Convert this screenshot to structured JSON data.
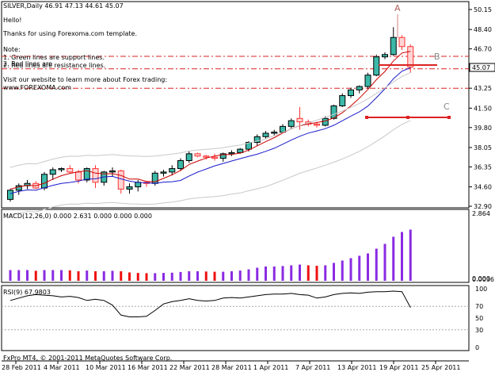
{
  "header": {
    "symbol_line": "SILVER,Daily  46.91 47.13 44.61 45.07",
    "hello": "Hello!",
    "thanks": "Thanks for using Forexoma.com template.",
    "note": "Note:",
    "note1": "1. Green lines are support lines.",
    "note2": "2. Red lines are resistance lines.",
    "note2_overlap": "2. Red lines are",
    "visit": "Visit our website to learn more about Forex trading:",
    "url": "www.FOREXOMA.com"
  },
  "price_axis": {
    "ticks": [
      "50.15",
      "48.40",
      "46.70",
      "44.95",
      "43.25",
      "41.50",
      "39.80",
      "38.05",
      "36.35",
      "34.60",
      "32.90"
    ],
    "current_price": "45.07",
    "current_color": "#000000"
  },
  "time_axis": {
    "labels": [
      "28 Feb 2011",
      "4 Mar 2011",
      "10 Mar 2011",
      "16 Mar 2011",
      "22 Mar 2011",
      "28 Mar 2011",
      "1 Apr 2011",
      "7 Apr 2011",
      "13 Apr 2011",
      "19 Apr 2011",
      "25 Apr 2011"
    ]
  },
  "markers": {
    "a": "A",
    "b": "B",
    "c": "C"
  },
  "macd": {
    "title": "MACD(12,26,0) 0.000 2.631 0.000 0.000 0.000",
    "axis_top": "2.864",
    "axis_bottom": "0.000",
    "axis_bottom_overlap": "0.0036"
  },
  "rsi": {
    "title": "RSI(9) 67.9803",
    "ticks": [
      "100",
      "70",
      "50",
      "30",
      "0"
    ]
  },
  "footer": {
    "copyright": "FxPro MT4, © 2001-2011 MetaQuotes Software Corp."
  },
  "colors": {
    "bull_fill": "#3cb8a8",
    "bear_fill": "#ffffff",
    "bear_outline": "#ff3333",
    "bull_outline": "#000000",
    "ma_fast": "#cc0000",
    "ma_slow": "#1a1acc",
    "envelope": "#c8c8c8",
    "resistance": "#dd2222",
    "macd_up": "#8a2be2",
    "macd_down": "#ee1111",
    "rsi_line": "#000000"
  }
}
